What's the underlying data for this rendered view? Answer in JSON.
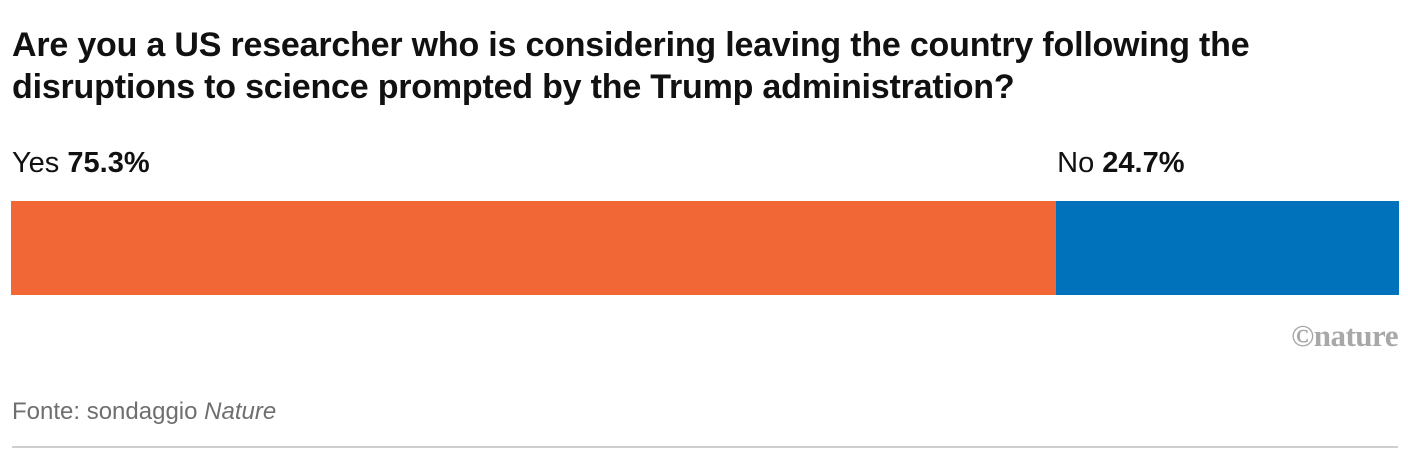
{
  "chart_data": {
    "type": "bar",
    "stacked": true,
    "orientation": "horizontal",
    "title": "Are you a US researcher who is considering leaving the country following the disruptions to science prompted by the Trump administration?",
    "categories": [
      "Yes",
      "No"
    ],
    "values": [
      75.3,
      24.7
    ],
    "value_labels": [
      "75.3%",
      "24.7%"
    ],
    "colors": [
      "#f26736",
      "#0072bc"
    ],
    "xlim": [
      0,
      100
    ]
  },
  "logo_text": "©nature",
  "source": {
    "prefix": "Fonte: sondaggio ",
    "publication": "Nature"
  }
}
